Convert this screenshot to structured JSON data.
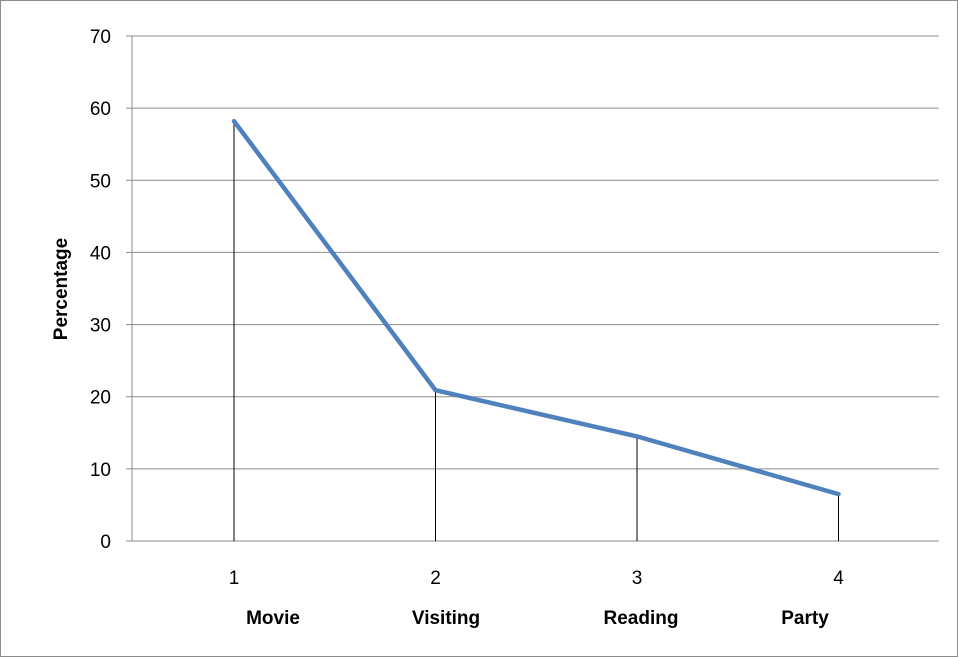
{
  "chart_data": {
    "type": "line",
    "title": "",
    "xlabel": "",
    "ylabel": "Percentage",
    "ylim": [
      0,
      70
    ],
    "yticks": [
      0,
      10,
      20,
      30,
      40,
      50,
      60,
      70
    ],
    "x": [
      1,
      2,
      3,
      4
    ],
    "x_tick_labels": [
      "1",
      "2",
      "3",
      "4"
    ],
    "categories": [
      "Movie",
      "Visiting",
      "Reading",
      "Party"
    ],
    "series": [
      {
        "values": [
          58.2,
          20.9,
          14.5,
          6.5
        ],
        "color": "#4f81bd"
      }
    ],
    "drop_lines": true,
    "grid": "horizontal",
    "legend": "none"
  }
}
